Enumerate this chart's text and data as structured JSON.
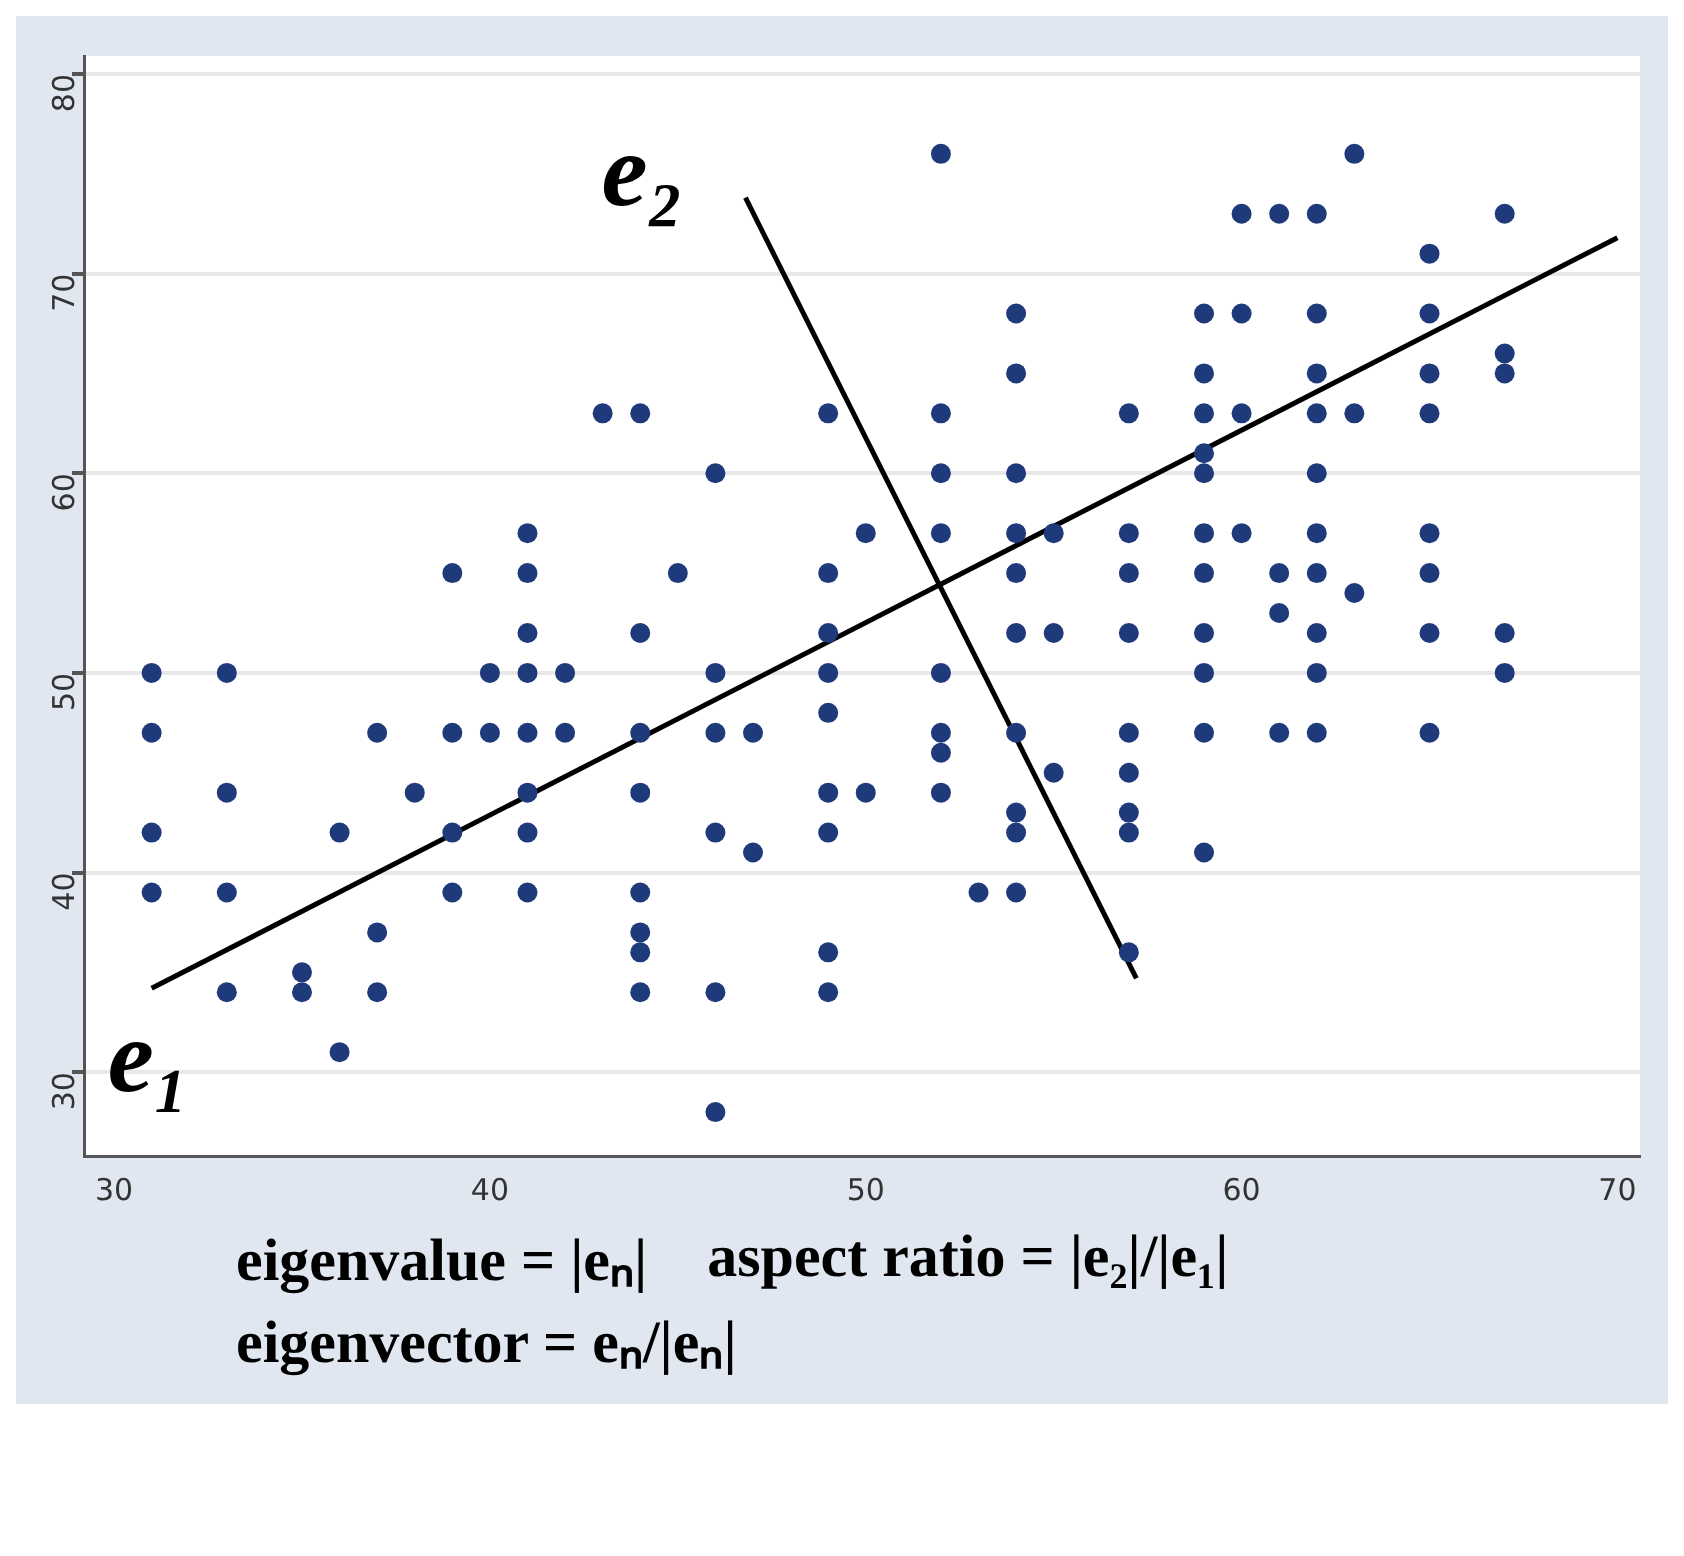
{
  "chart_data": {
    "type": "scatter",
    "xlim": [
      29.2,
      70.6
    ],
    "ylim": [
      25.8,
      80.9
    ],
    "xticks": [
      30,
      40,
      50,
      60,
      70
    ],
    "yticks": [
      30,
      40,
      50,
      60,
      70,
      80
    ],
    "grid": "y",
    "legend": false,
    "marker": "circle",
    "series": [
      {
        "color": "#1f3a7a",
        "x": [
          31,
          31,
          31,
          31,
          33,
          33,
          33,
          33,
          35,
          35,
          36,
          36,
          37,
          37,
          37,
          38,
          39,
          39,
          39,
          39,
          40,
          40,
          41,
          41,
          41,
          41,
          41,
          41,
          41,
          41,
          42,
          42,
          43,
          44,
          44,
          44,
          44,
          44,
          44,
          44,
          44,
          45,
          46,
          46,
          46,
          46,
          46,
          46,
          47,
          47,
          49,
          49,
          49,
          49,
          49,
          49,
          49,
          49,
          49,
          50,
          50,
          52,
          52,
          52,
          52,
          52,
          52,
          52,
          52,
          53,
          54,
          54,
          54,
          54,
          54,
          54,
          54,
          54,
          54,
          54,
          55,
          55,
          55,
          57,
          57,
          57,
          57,
          57,
          57,
          57,
          57,
          57,
          59,
          59,
          59,
          59,
          59,
          59,
          59,
          59,
          59,
          59,
          59,
          60,
          60,
          60,
          60,
          61,
          61,
          61,
          61,
          62,
          62,
          62,
          62,
          62,
          62,
          62,
          62,
          62,
          62,
          63,
          63,
          63,
          65,
          65,
          65,
          65,
          65,
          65,
          65,
          65,
          67,
          67,
          67,
          67,
          67
        ],
        "values": [
          50,
          47,
          42,
          39,
          50,
          44,
          39,
          34,
          35,
          34,
          42,
          31,
          47,
          37,
          34,
          44,
          55,
          47,
          42,
          39,
          50,
          47,
          57,
          55,
          52,
          50,
          47,
          44,
          42,
          39,
          50,
          47,
          63,
          63,
          52,
          47,
          44,
          39,
          37,
          36,
          34,
          55,
          60,
          50,
          47,
          42,
          34,
          28,
          47,
          41,
          63,
          55,
          52,
          50,
          48,
          44,
          42,
          36,
          34,
          57,
          44,
          76,
          63,
          60,
          57,
          50,
          47,
          46,
          44,
          39,
          68,
          65,
          60,
          57,
          55,
          52,
          47,
          43,
          42,
          39,
          57,
          52,
          45,
          63,
          57,
          55,
          52,
          47,
          45,
          43,
          42,
          36,
          68,
          65,
          63,
          61,
          60,
          57,
          55,
          52,
          50,
          47,
          41,
          73,
          68,
          63,
          57,
          73,
          55,
          53,
          47,
          73,
          68,
          65,
          63,
          60,
          57,
          55,
          52,
          50,
          47,
          76,
          63,
          54,
          71,
          68,
          65,
          63,
          57,
          55,
          52,
          47,
          73,
          66,
          65,
          52,
          50
        ]
      },
      {
        "type": "line",
        "color": "#000000",
        "marker": "none",
        "x": [
          31,
          70
        ],
        "values": [
          34.2,
          71.8
        ]
      },
      {
        "type": "line",
        "color": "#000000",
        "marker": "none",
        "x": [
          46.8,
          57.2
        ],
        "values": [
          73.8,
          34.7
        ]
      }
    ],
    "annotations": [
      "e₁",
      "e₂",
      "eigenvalue = |eₙ|",
      "aspect ratio = |e₂|/|e₁|",
      "eigenvector = eₙ/|eₙ|"
    ]
  }
}
